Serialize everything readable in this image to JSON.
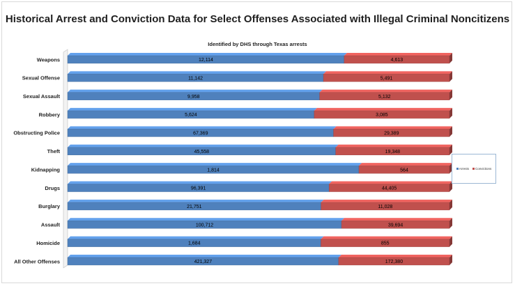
{
  "chart_data": {
    "type": "bar",
    "orientation": "horizontal",
    "stacked": "100%",
    "title": "Historical Arrest and Conviction Data for Select Offenses Associated with Illegal Criminal Noncitizens",
    "subtitle": "Identified by DHS through Texas arrests",
    "categories": [
      "Weapons",
      "Sexual Offense",
      "Sexual Assault",
      "Robbery",
      "Obstructing Police",
      "Theft",
      "Kidnapping",
      "Drugs",
      "Burglary",
      "Assault",
      "Homicide",
      "All Other Offenses"
    ],
    "series": [
      {
        "name": "Arrests",
        "color": "#4f81bd",
        "values": [
          12114,
          11142,
          9958,
          5624,
          67369,
          45558,
          1814,
          96391,
          21751,
          100712,
          1684,
          421327
        ],
        "labels": [
          "12,114",
          "11,142",
          "9,958",
          "5,624",
          "67,369",
          "45,558",
          "1,814",
          "96,391",
          "21,751",
          "100,712",
          "1,684",
          "421,327"
        ]
      },
      {
        "name": "Convictions",
        "color": "#c0504d",
        "values": [
          4613,
          5491,
          5132,
          3085,
          29389,
          19348,
          564,
          44405,
          11028,
          39694,
          855,
          172380
        ],
        "labels": [
          "4,613",
          "5,491",
          "5,132",
          "3,085",
          "29,389",
          "19,348",
          "564",
          "44,405",
          "11,028",
          "39,694",
          "855",
          "172,380"
        ]
      }
    ],
    "legend_position": "right",
    "grid": false
  }
}
